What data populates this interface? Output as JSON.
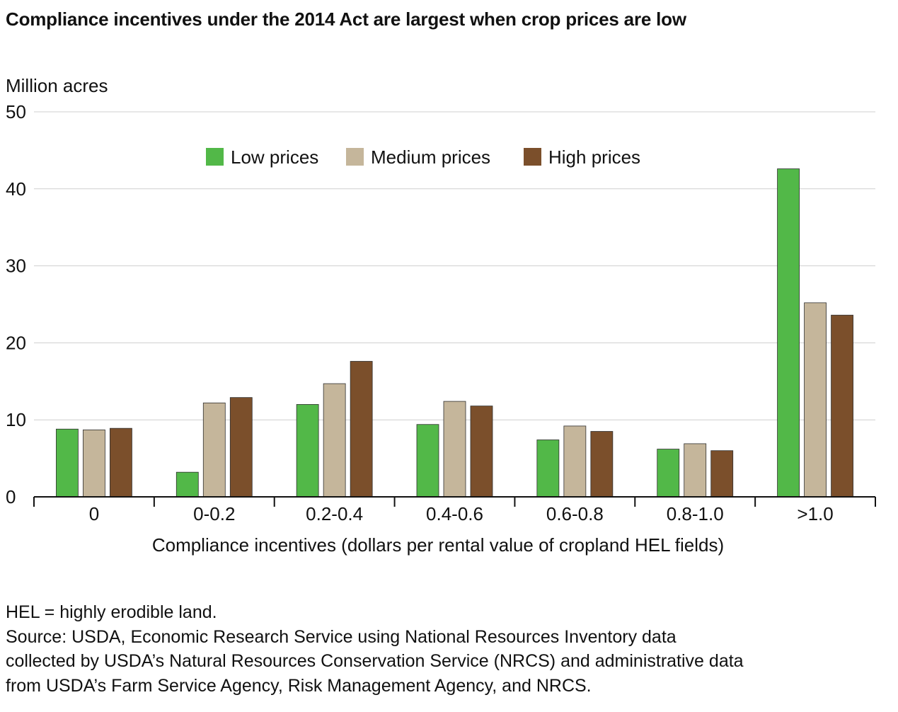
{
  "title": "Compliance incentives under the 2014 Act are largest when crop prices are low",
  "chart_data": {
    "type": "bar",
    "ylabel": "Million acres",
    "xlabel": "Compliance incentives (dollars per rental value of cropland HEL fields)",
    "categories": [
      "0",
      "0-0.2",
      "0.2-0.4",
      "0.4-0.6",
      "0.6-0.8",
      "0.8-1.0",
      ">1.0"
    ],
    "ylim": [
      0,
      50
    ],
    "yticks": [
      0,
      10,
      20,
      30,
      40,
      50
    ],
    "grid": true,
    "legend_position": "top-center",
    "series": [
      {
        "name": "Low prices",
        "color": "#52b848",
        "values": [
          8.8,
          3.2,
          12.0,
          9.4,
          7.4,
          6.2,
          42.6
        ]
      },
      {
        "name": "Medium prices",
        "color": "#c5b69b",
        "values": [
          8.7,
          12.2,
          14.7,
          12.4,
          9.2,
          6.9,
          25.2
        ]
      },
      {
        "name": "High prices",
        "color": "#7b4f2b",
        "values": [
          8.9,
          12.9,
          17.6,
          11.8,
          8.5,
          6.0,
          23.6
        ]
      }
    ]
  },
  "notes": {
    "definition": "HEL = highly erodible land.",
    "source_lines": [
      "Source: USDA, Economic Research Service using National Resources Inventory data",
      "collected by USDA’s Natural Resources Conservation Service (NRCS) and administrative data",
      "from USDA’s Farm Service Agency, Risk Management Agency, and NRCS."
    ]
  }
}
